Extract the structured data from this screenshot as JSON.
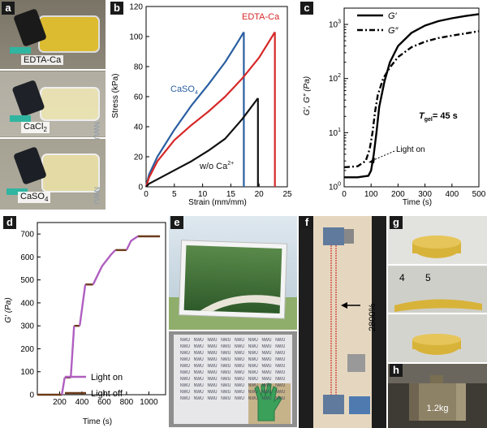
{
  "panel_labels": [
    "a",
    "b",
    "c",
    "d",
    "e",
    "f",
    "g",
    "h"
  ],
  "panel_a": {
    "vials": [
      "EDTA-Ca",
      "CaCl",
      "CaSO"
    ],
    "subscripts": [
      "",
      "2",
      "4"
    ]
  },
  "panel_b": {
    "xlabel": "Strain (mm/mm)",
    "ylabel": "Stress (kPa)",
    "xticks": [
      "0",
      "5",
      "10",
      "15",
      "20",
      "25"
    ],
    "yticks": [
      "0",
      "20",
      "40",
      "60",
      "80",
      "100",
      "120"
    ],
    "label_caso4": "CaSO",
    "label_caso4_sub": "4",
    "label_edta": "EDTA-Ca",
    "label_woca": "w/o Ca",
    "label_woca_sup": "2+"
  },
  "panel_c": {
    "xlabel": "Time (s)",
    "ylabel": "G′, G″ (Pa)",
    "xticks": [
      "0",
      "100",
      "200",
      "300",
      "400",
      "500"
    ],
    "ybase": "10",
    "yexp": [
      "0",
      "1",
      "2",
      "3"
    ],
    "legend": [
      "G′",
      "G″"
    ],
    "tgel_label": "T",
    "tgel_sub": "gel",
    "tgel_value": "= 45 s",
    "arrow_text": "Light on"
  },
  "panel_d": {
    "xlabel": "Time (s)",
    "ylabel": "G′ (Pa)",
    "xticks": [
      "200",
      "400",
      "600",
      "800",
      "1000"
    ],
    "yticks": [
      "0",
      "100",
      "200",
      "300",
      "400",
      "500",
      "600",
      "700"
    ],
    "legend": [
      "Light on",
      "Light off"
    ]
  },
  "panel_f": {
    "annotation": "2800%"
  },
  "panel_h": {
    "weight": "1.2kg"
  },
  "photo_text": {
    "nwu": "NWU",
    "ruler_numbers": [
      "4",
      "5"
    ]
  },
  "colors": {
    "caso4": "#2a5fa0",
    "edta": "#d62828",
    "woca": "#111111",
    "light_on": "#b05fc0",
    "light_off": "#6b3a1a",
    "gel": "#d8b33a"
  },
  "chart_data": [
    {
      "type": "line",
      "panel": "b",
      "xlabel": "Strain (mm/mm)",
      "ylabel": "Stress (kPa)",
      "xlim": [
        0,
        25
      ],
      "ylim": [
        0,
        120
      ],
      "series": [
        {
          "name": "CaSO4",
          "x": [
            0,
            0.5,
            2,
            5,
            8,
            11,
            14,
            16,
            17.3
          ],
          "y": [
            0,
            8,
            20,
            38,
            54,
            68,
            83,
            95,
            103
          ]
        },
        {
          "name": "EDTA-Ca",
          "x": [
            0,
            0.5,
            2,
            5,
            8,
            11,
            14,
            17,
            20,
            22.8
          ],
          "y": [
            0,
            6,
            17,
            31,
            41,
            50,
            60,
            72,
            86,
            103
          ]
        },
        {
          "name": "w/o Ca2+",
          "x": [
            0,
            0.5,
            2,
            5,
            8,
            11,
            14,
            17,
            19.8
          ],
          "y": [
            0,
            2,
            5,
            11,
            17,
            24,
            32,
            45,
            59
          ]
        }
      ]
    },
    {
      "type": "line",
      "panel": "c",
      "xlabel": "Time (s)",
      "ylabel": "G′, G″ (Pa)",
      "xlim": [
        0,
        500
      ],
      "ylim": [
        1,
        2000
      ],
      "yscale": "log",
      "series": [
        {
          "name": "G′",
          "x": [
            0,
            50,
            90,
            100,
            110,
            120,
            130,
            150,
            170,
            200,
            250,
            300,
            350,
            400,
            450,
            500
          ],
          "y": [
            1.5,
            1.5,
            1.6,
            2,
            4,
            10,
            30,
            90,
            200,
            400,
            700,
            950,
            1150,
            1300,
            1430,
            1550
          ]
        },
        {
          "name": "G″",
          "x": [
            0,
            50,
            80,
            95,
            105,
            115,
            125,
            145,
            170,
            200,
            250,
            300,
            350,
            400,
            450,
            500
          ],
          "y": [
            2.3,
            2.4,
            3,
            5,
            10,
            25,
            50,
            100,
            160,
            250,
            380,
            480,
            560,
            620,
            680,
            750
          ]
        }
      ]
    },
    {
      "type": "line",
      "panel": "d",
      "xlabel": "Time (s)",
      "ylabel": "G′ (Pa)",
      "xlim": [
        0,
        1150
      ],
      "ylim": [
        0,
        750
      ],
      "series": [
        {
          "name": "Light on",
          "segments": [
            {
              "x": [
                220,
                245
              ],
              "y": [
                0,
                75
              ]
            },
            {
              "x": [
                300,
                330
              ],
              "y": [
                75,
                300
              ]
            },
            {
              "x": [
                380,
                430
              ],
              "y": [
                300,
                480
              ]
            },
            {
              "x": [
                500,
                580,
                660,
                700
              ],
              "y": [
                480,
                560,
                610,
                630
              ]
            },
            {
              "x": [
                800,
                840,
                900
              ],
              "y": [
                630,
                670,
                690
              ]
            }
          ]
        },
        {
          "name": "Light off",
          "segments": [
            {
              "x": [
                0,
                220
              ],
              "y": [
                0,
                0
              ]
            },
            {
              "x": [
                245,
                300
              ],
              "y": [
                75,
                75
              ]
            },
            {
              "x": [
                330,
                380
              ],
              "y": [
                300,
                300
              ]
            },
            {
              "x": [
                430,
                500
              ],
              "y": [
                480,
                480
              ]
            },
            {
              "x": [
                700,
                800
              ],
              "y": [
                630,
                630
              ]
            },
            {
              "x": [
                900,
                1100
              ],
              "y": [
                690,
                690
              ]
            }
          ]
        }
      ]
    }
  ]
}
